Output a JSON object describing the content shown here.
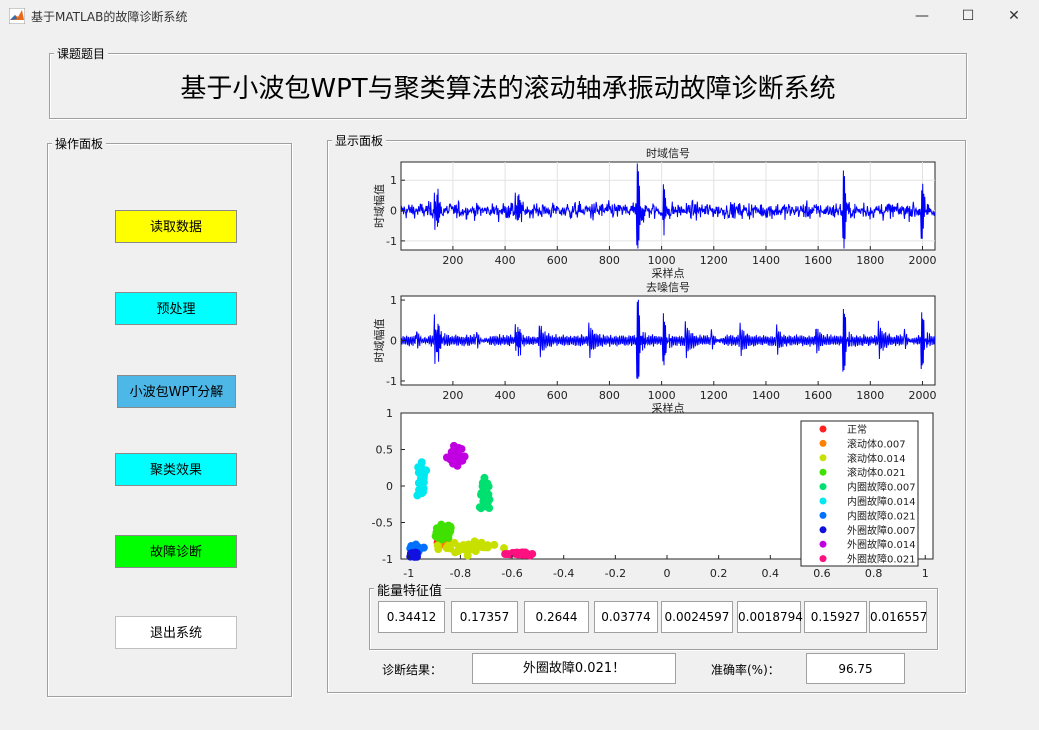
{
  "window": {
    "title": "基于MATLAB的故障诊断系统",
    "icon": "matlab-icon",
    "controls": [
      "minimize-icon",
      "maximize-icon",
      "close-icon"
    ]
  },
  "title_panel": {
    "label": "课题题目",
    "title": "基于小波包WPT与聚类算法的滚动轴承振动故障诊断系统"
  },
  "control_panel": {
    "label": "操作面板",
    "buttons": [
      {
        "label": "读取数据",
        "color": "#ffff00"
      },
      {
        "label": "预处理",
        "color": "#00ffff"
      },
      {
        "label": "小波包WPT分解",
        "color": "#4db8e8"
      },
      {
        "label": "聚类效果",
        "color": "#00ffff"
      },
      {
        "label": "故障诊断",
        "color": "#00ff00"
      },
      {
        "label": "退出系统",
        "color": "#ffffff"
      }
    ]
  },
  "display_panel": {
    "label": "显示面板",
    "energy_label": "能量特征值",
    "energy_values": [
      "0.34412",
      "0.17357",
      "0.2644",
      "0.03774",
      "0.0024597",
      "0.0018794",
      "0.15927",
      "0.016557"
    ],
    "result_label": "诊断结果：",
    "result_value": "外圈故障0.021！",
    "accuracy_label": "准确率(%)：",
    "accuracy_value": "96.75"
  },
  "chart_data": [
    {
      "type": "line",
      "title": "时域信号",
      "xlabel": "采样点",
      "ylabel": "时域幅值",
      "xlim": [
        1,
        2048
      ],
      "ylim": [
        -1.3,
        1.6
      ],
      "xticks": [
        200,
        400,
        600,
        800,
        1000,
        1200,
        1400,
        1600,
        1800,
        2000
      ],
      "yticks": [
        -1,
        0,
        1
      ],
      "grid": true,
      "color": "#0000ff",
      "bursts": [
        {
          "x": 135,
          "amp": 1.4
        },
        {
          "x": 445,
          "amp": 1.0
        },
        {
          "x": 910,
          "amp": 1.6
        },
        {
          "x": 1010,
          "amp": 0.8
        },
        {
          "x": 1700,
          "amp": 1.3
        },
        {
          "x": 2000,
          "amp": 1.0
        }
      ]
    },
    {
      "type": "line",
      "title": "去噪信号",
      "xlabel": "采样点",
      "ylabel": "时域幅值",
      "xlim": [
        1,
        2048
      ],
      "ylim": [
        -1.1,
        1.1
      ],
      "xticks": [
        200,
        400,
        600,
        800,
        1000,
        1200,
        1400,
        1600,
        1800,
        2000
      ],
      "yticks": [
        -1,
        0,
        1
      ],
      "grid": false,
      "color": "#0000ff",
      "bursts": [
        {
          "x": 135,
          "amp": 0.9
        },
        {
          "x": 445,
          "amp": 0.7
        },
        {
          "x": 910,
          "amp": 1.1
        },
        {
          "x": 1010,
          "amp": 0.6
        },
        {
          "x": 1700,
          "amp": 0.8
        },
        {
          "x": 2000,
          "amp": 0.7
        }
      ]
    },
    {
      "type": "scatter",
      "xlim": [
        -1.03,
        1.03
      ],
      "ylim": [
        -1.0,
        1.0
      ],
      "xticks": [
        -1,
        -0.8,
        -0.6,
        -0.4,
        -0.2,
        0,
        0.2,
        0.4,
        0.6,
        0.8,
        1
      ],
      "xtick_labels": [
        "-1",
        "-0.8",
        "-0.6",
        "-0.4",
        "-0.2",
        "0",
        "0.2",
        "0.4",
        "0.6",
        "0.8",
        "1"
      ],
      "yticks": [
        -1,
        -0.5,
        0,
        0.5,
        1
      ],
      "ytick_labels": [
        "-1",
        "-0.5",
        "0",
        "0.5",
        "1"
      ],
      "legend_position": "top-right",
      "series": [
        {
          "name": "正常",
          "color": "#ff2020",
          "cx": -0.87,
          "cy": -0.78,
          "sx": 0.02,
          "sy": 0.03,
          "n": 10
        },
        {
          "name": "滚动体0.007",
          "color": "#ff8000",
          "cx": -0.86,
          "cy": -0.8,
          "sx": 0.02,
          "sy": 0.03,
          "n": 10
        },
        {
          "name": "滚动体0.014",
          "color": "#c8e000",
          "cx": -0.75,
          "cy": -0.83,
          "sx": 0.09,
          "sy": 0.07,
          "n": 40
        },
        {
          "name": "滚动体0.021",
          "color": "#40e000",
          "cx": -0.86,
          "cy": -0.63,
          "sx": 0.025,
          "sy": 0.08,
          "n": 40
        },
        {
          "name": "内圈故障0.007",
          "color": "#00e070",
          "cx": -0.7,
          "cy": -0.1,
          "sx": 0.015,
          "sy": 0.17,
          "n": 40
        },
        {
          "name": "内圈故障0.014",
          "color": "#00e8f0",
          "cx": -0.95,
          "cy": 0.05,
          "sx": 0.012,
          "sy": 0.22,
          "n": 50
        },
        {
          "name": "内圈故障0.021",
          "color": "#0070ff",
          "cx": -0.97,
          "cy": -0.88,
          "sx": 0.02,
          "sy": 0.07,
          "n": 12
        },
        {
          "name": "外圈故障0.007",
          "color": "#1010e0",
          "cx": -0.98,
          "cy": -0.95,
          "sx": 0.012,
          "sy": 0.04,
          "n": 14
        },
        {
          "name": "外圈故障0.014",
          "color": "#c000e0",
          "cx": -0.82,
          "cy": 0.4,
          "sx": 0.025,
          "sy": 0.12,
          "n": 40
        },
        {
          "name": "外圈故障0.021",
          "color": "#ff1080",
          "cx": -0.56,
          "cy": -0.93,
          "sx": 0.04,
          "sy": 0.02,
          "n": 30
        }
      ]
    }
  ]
}
